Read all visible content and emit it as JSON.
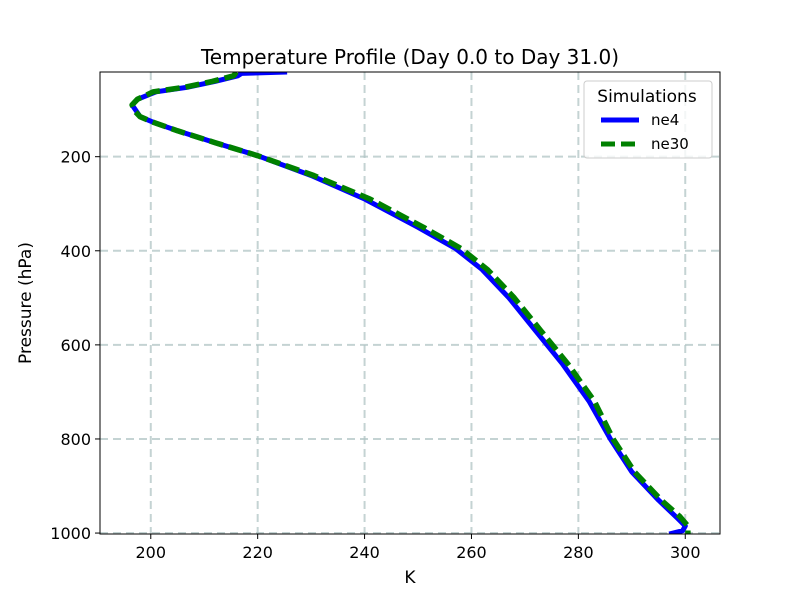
{
  "chart_data": {
    "type": "line",
    "title": "Temperature Profile (Day 0.0 to Day 31.0)",
    "xlabel": "K",
    "ylabel": "Pressure (hPa)",
    "xlim": [
      190.5,
      306.5
    ],
    "ylim": [
      1002,
      20
    ],
    "y_inverted": true,
    "grid": true,
    "legend": {
      "title": "Simulations",
      "placement": "top-right"
    },
    "x_ticks": [
      200,
      220,
      240,
      260,
      280,
      300
    ],
    "y_ticks": [
      200,
      400,
      600,
      800,
      1000
    ],
    "series": [
      {
        "name": "ne4",
        "color": "#0000ff",
        "style": "solid",
        "points": [
          [
            225.5,
            20
          ],
          [
            217,
            23
          ],
          [
            216.3,
            28
          ],
          [
            212,
            40
          ],
          [
            207,
            52
          ],
          [
            201,
            62
          ],
          [
            197.5,
            78
          ],
          [
            196.5,
            90
          ],
          [
            197.3,
            103
          ],
          [
            198,
            115
          ],
          [
            200.5,
            127
          ],
          [
            205,
            145
          ],
          [
            212,
            170
          ],
          [
            220,
            198
          ],
          [
            230,
            240
          ],
          [
            240,
            290
          ],
          [
            250,
            350
          ],
          [
            257,
            395
          ],
          [
            262,
            440
          ],
          [
            267,
            500
          ],
          [
            272,
            570
          ],
          [
            277,
            640
          ],
          [
            282,
            720
          ],
          [
            286,
            800
          ],
          [
            290,
            870
          ],
          [
            295,
            930
          ],
          [
            298.5,
            968
          ],
          [
            300,
            985
          ],
          [
            299.5,
            995
          ],
          [
            297,
            1002
          ]
        ]
      },
      {
        "name": "ne30",
        "color": "#008000",
        "style": "dashed",
        "points": [
          [
            216,
            20
          ],
          [
            215.5,
            28
          ],
          [
            211.5,
            40
          ],
          [
            206.5,
            52
          ],
          [
            200.5,
            62
          ],
          [
            197.5,
            78
          ],
          [
            196.5,
            90
          ],
          [
            197,
            103
          ],
          [
            198,
            115
          ],
          [
            200.5,
            127
          ],
          [
            205,
            145
          ],
          [
            212,
            170
          ],
          [
            220,
            198
          ],
          [
            230.5,
            240
          ],
          [
            241,
            290
          ],
          [
            251,
            350
          ],
          [
            258,
            395
          ],
          [
            263,
            440
          ],
          [
            268,
            500
          ],
          [
            273,
            570
          ],
          [
            278,
            640
          ],
          [
            283,
            720
          ],
          [
            286.5,
            800
          ],
          [
            290.5,
            870
          ],
          [
            295.5,
            930
          ],
          [
            299,
            965
          ],
          [
            300.5,
            985
          ],
          [
            300.5,
            1002
          ]
        ]
      }
    ]
  }
}
